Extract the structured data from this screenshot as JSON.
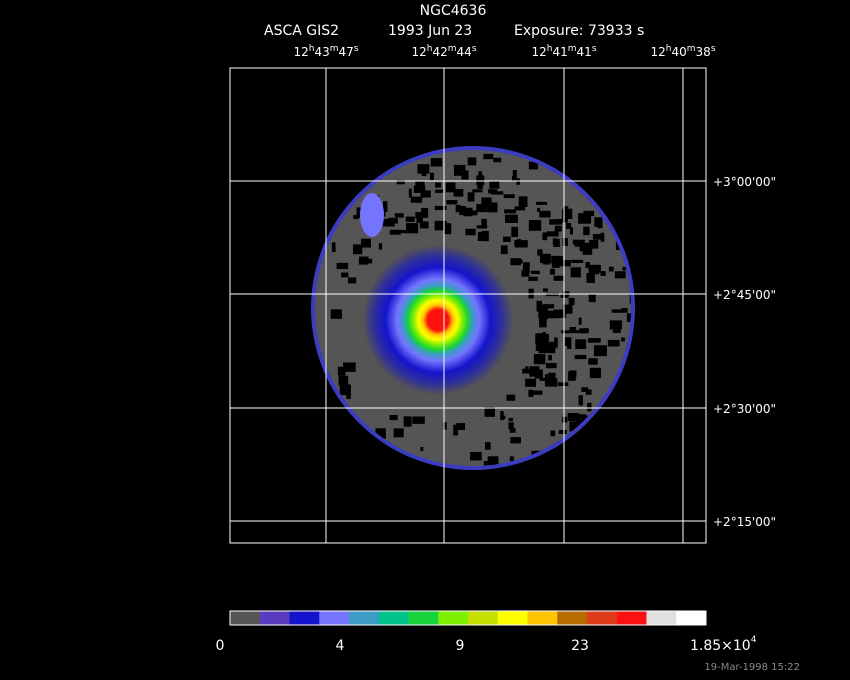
{
  "title": {
    "object": "NGC4636",
    "instrument": "ASCA GIS2",
    "date": "1993 Jun 23",
    "exposure": "Exposure: 73933 s"
  },
  "ra_labels": [
    [
      "12",
      "h",
      "43",
      "m",
      "47",
      "s"
    ],
    [
      "12",
      "h",
      "42",
      "m",
      "44",
      "s"
    ],
    [
      "12",
      "h",
      "41",
      "m",
      "41",
      "s"
    ],
    [
      "12",
      "h",
      "40",
      "m",
      "38",
      "s"
    ]
  ],
  "dec_labels": [
    "+3°00'00\"",
    "+2°45'00\"",
    "+2°30'00\"",
    "+2°15'00\""
  ],
  "colorbar": {
    "colors": [
      "#555555",
      "#5a3cc0",
      "#1414cc",
      "#7474ff",
      "#3c9cc4",
      "#00c48c",
      "#18d23c",
      "#7cf000",
      "#c4e000",
      "#ffff00",
      "#ffc400",
      "#b86c00",
      "#e03c1c",
      "#ff1010",
      "#e0e0e0",
      "#ffffff"
    ],
    "labels": [
      "0",
      "4",
      "9",
      "23"
    ],
    "max_label": {
      "base": "1.85×10",
      "exp": "4"
    }
  },
  "footer": "19-Mar-1998 15:22"
}
